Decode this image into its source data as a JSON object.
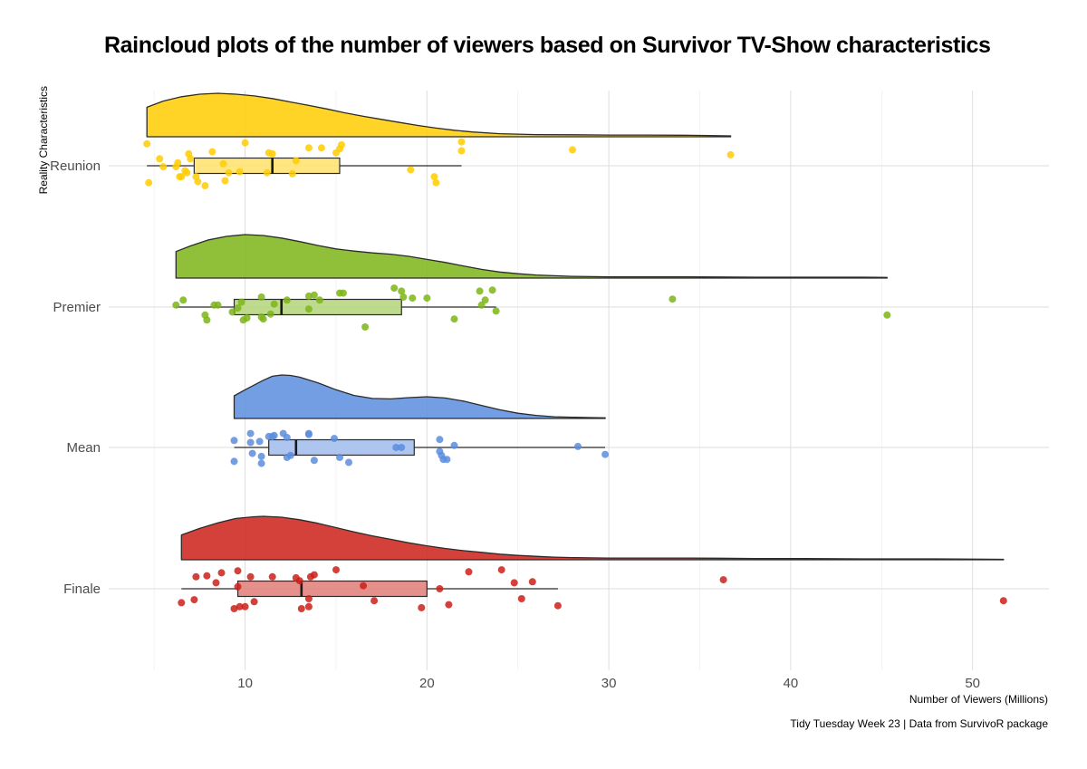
{
  "chart_data": {
    "type": "raincloud",
    "title": "Raincloud plots of the number of viewers based on Survivor TV-Show characteristics",
    "xlabel": "Number of Viewers (Millions)",
    "ylabel": "Reality Characteristics",
    "caption": "Tidy Tuesday Week 23 | Data from SurvivoR package",
    "xlim": [
      2.5,
      54.2
    ],
    "x_ticks": [
      10,
      20,
      30,
      40,
      50
    ],
    "x_tick_labels": [
      "10",
      "20",
      "30",
      "40",
      "50"
    ],
    "grid": true,
    "legend": "none",
    "categories": [
      "Reunion",
      "Premier",
      "Mean",
      "Finale"
    ],
    "series": [
      {
        "name": "Reunion",
        "color": "#FFCC00",
        "box": {
          "min": 4.6,
          "q1": 7.2,
          "median": 11.5,
          "q3": 15.2,
          "max": 21.9
        },
        "density": [
          [
            4.6,
            0.68
          ],
          [
            5.5,
            0.82
          ],
          [
            6.5,
            0.92
          ],
          [
            7.5,
            0.98
          ],
          [
            8.5,
            1.0
          ],
          [
            9.5,
            0.98
          ],
          [
            10.5,
            0.94
          ],
          [
            11.5,
            0.88
          ],
          [
            12.5,
            0.8
          ],
          [
            13.5,
            0.72
          ],
          [
            14.5,
            0.64
          ],
          [
            15.5,
            0.55
          ],
          [
            16.5,
            0.47
          ],
          [
            17.5,
            0.4
          ],
          [
            18.5,
            0.33
          ],
          [
            19.5,
            0.26
          ],
          [
            20.5,
            0.2
          ],
          [
            21.5,
            0.15
          ],
          [
            22.5,
            0.11
          ],
          [
            24,
            0.07
          ],
          [
            26,
            0.05
          ],
          [
            28,
            0.045
          ],
          [
            30,
            0.04
          ],
          [
            32,
            0.04
          ],
          [
            34,
            0.035
          ],
          [
            35.5,
            0.03
          ],
          [
            36.7,
            0.02
          ]
        ],
        "points": [
          [
            4.6,
            1.1
          ],
          [
            4.7,
            -0.85
          ],
          [
            5.3,
            0.35
          ],
          [
            5.5,
            -0.05
          ],
          [
            6.2,
            -0.05
          ],
          [
            6.3,
            0.15
          ],
          [
            6.4,
            -0.55
          ],
          [
            6.5,
            -0.55
          ],
          [
            6.7,
            -0.25
          ],
          [
            6.8,
            -0.35
          ],
          [
            6.9,
            0.6
          ],
          [
            7.0,
            0.35
          ],
          [
            7.3,
            -0.55
          ],
          [
            7.8,
            -1.0
          ],
          [
            7.4,
            -0.8
          ],
          [
            8.2,
            0.7
          ],
          [
            8.8,
            0.1
          ],
          [
            8.9,
            -0.75
          ],
          [
            9.1,
            -0.35
          ],
          [
            9.7,
            -0.3
          ],
          [
            10.0,
            1.15
          ],
          [
            11.2,
            -0.35
          ],
          [
            11.3,
            0.65
          ],
          [
            11.5,
            0.6
          ],
          [
            12.6,
            -0.4
          ],
          [
            12.8,
            0.25
          ],
          [
            13.5,
            0.9
          ],
          [
            14.2,
            0.9
          ],
          [
            15.0,
            0.65
          ],
          [
            15.2,
            0.85
          ],
          [
            15.3,
            1.05
          ],
          [
            19.1,
            -0.2
          ],
          [
            20.4,
            -0.55
          ],
          [
            20.5,
            -0.85
          ],
          [
            21.9,
            1.2
          ],
          [
            21.9,
            0.75
          ],
          [
            28.0,
            0.8
          ],
          [
            36.7,
            0.55
          ]
        ]
      },
      {
        "name": "Premier",
        "color": "#7CB518",
        "box": {
          "min": 6.2,
          "q1": 9.4,
          "median": 12.0,
          "q3": 18.6,
          "max": 23.8
        },
        "density": [
          [
            6.2,
            0.61
          ],
          [
            7,
            0.74
          ],
          [
            8,
            0.88
          ],
          [
            9,
            0.96
          ],
          [
            10,
            1.0
          ],
          [
            11,
            0.98
          ],
          [
            12,
            0.92
          ],
          [
            13,
            0.84
          ],
          [
            14,
            0.75
          ],
          [
            15,
            0.67
          ],
          [
            16,
            0.62
          ],
          [
            17,
            0.58
          ],
          [
            18,
            0.55
          ],
          [
            19,
            0.5
          ],
          [
            20,
            0.43
          ],
          [
            21,
            0.36
          ],
          [
            22,
            0.28
          ],
          [
            23,
            0.2
          ],
          [
            24,
            0.14
          ],
          [
            25,
            0.1
          ],
          [
            26,
            0.07
          ],
          [
            28,
            0.04
          ],
          [
            30,
            0.03
          ],
          [
            32,
            0.03
          ],
          [
            34,
            0.03
          ],
          [
            36,
            0.025
          ],
          [
            38,
            0.02
          ],
          [
            40,
            0.02
          ],
          [
            42,
            0.02
          ],
          [
            44,
            0.02
          ],
          [
            45.3,
            0.015
          ]
        ],
        "points": [
          [
            6.2,
            0.1
          ],
          [
            6.6,
            0.35
          ],
          [
            7.8,
            -0.4
          ],
          [
            7.9,
            -0.65
          ],
          [
            8.3,
            0.1
          ],
          [
            8.5,
            0.1
          ],
          [
            9.3,
            -0.25
          ],
          [
            9.6,
            -0.05
          ],
          [
            9.8,
            0.25
          ],
          [
            9.9,
            -0.65
          ],
          [
            10.1,
            -0.55
          ],
          [
            10.9,
            0.5
          ],
          [
            10.9,
            -0.5
          ],
          [
            11.0,
            -0.6
          ],
          [
            11.4,
            -0.35
          ],
          [
            11.6,
            0.15
          ],
          [
            12.3,
            0.35
          ],
          [
            13.5,
            0.55
          ],
          [
            13.5,
            -0.1
          ],
          [
            13.8,
            0.6
          ],
          [
            14.1,
            0.35
          ],
          [
            15.2,
            0.7
          ],
          [
            15.4,
            0.7
          ],
          [
            16.6,
            -1.0
          ],
          [
            18.2,
            0.95
          ],
          [
            18.6,
            0.8
          ],
          [
            18.7,
            0.5
          ],
          [
            19.2,
            0.45
          ],
          [
            20.0,
            0.45
          ],
          [
            21.5,
            -0.6
          ],
          [
            22.9,
            0.8
          ],
          [
            23.0,
            0.1
          ],
          [
            23.2,
            0.35
          ],
          [
            23.6,
            0.85
          ],
          [
            23.8,
            -0.2
          ],
          [
            33.5,
            0.4
          ],
          [
            45.3,
            -0.4
          ]
        ]
      },
      {
        "name": "Mean",
        "color": "#5B8DDE",
        "box": {
          "min": 9.4,
          "q1": 11.3,
          "median": 12.8,
          "q3": 19.3,
          "max": 29.8
        },
        "density": [
          [
            9.4,
            0.52
          ],
          [
            10,
            0.66
          ],
          [
            11,
            0.88
          ],
          [
            11.5,
            0.97
          ],
          [
            12,
            1.0
          ],
          [
            12.5,
            0.99
          ],
          [
            13,
            0.95
          ],
          [
            14,
            0.82
          ],
          [
            15,
            0.66
          ],
          [
            16,
            0.53
          ],
          [
            17,
            0.46
          ],
          [
            18,
            0.45
          ],
          [
            19,
            0.48
          ],
          [
            20,
            0.5
          ],
          [
            21,
            0.47
          ],
          [
            22,
            0.4
          ],
          [
            23,
            0.3
          ],
          [
            24,
            0.2
          ],
          [
            25,
            0.12
          ],
          [
            26,
            0.07
          ],
          [
            27,
            0.04
          ],
          [
            28,
            0.03
          ],
          [
            29,
            0.02
          ],
          [
            29.8,
            0.015
          ]
        ],
        "points": [
          [
            9.4,
            0.35
          ],
          [
            9.4,
            -0.7
          ],
          [
            10.3,
            0.7
          ],
          [
            10.3,
            0.25
          ],
          [
            10.4,
            -0.3
          ],
          [
            10.8,
            0.3
          ],
          [
            10.9,
            -0.45
          ],
          [
            10.9,
            -0.8
          ],
          [
            11.3,
            0.55
          ],
          [
            11.5,
            0.55
          ],
          [
            11.6,
            0.6
          ],
          [
            12.1,
            0.7
          ],
          [
            12.3,
            0.5
          ],
          [
            12.3,
            -0.5
          ],
          [
            12.5,
            -0.4
          ],
          [
            13.5,
            0.65
          ],
          [
            13.5,
            0.7
          ],
          [
            13.8,
            -0.65
          ],
          [
            14.9,
            0.45
          ],
          [
            15.2,
            -0.5
          ],
          [
            15.7,
            -0.75
          ],
          [
            18.3,
            0.0
          ],
          [
            18.6,
            0.0
          ],
          [
            20.7,
            0.4
          ],
          [
            20.7,
            -0.2
          ],
          [
            20.8,
            -0.4
          ],
          [
            20.9,
            -0.6
          ],
          [
            21.1,
            -0.6
          ],
          [
            21.5,
            0.1
          ],
          [
            28.3,
            0.05
          ],
          [
            29.8,
            -0.35
          ]
        ]
      },
      {
        "name": "Finale",
        "color": "#CC1F18",
        "box": {
          "min": 6.5,
          "q1": 9.6,
          "median": 13.1,
          "q3": 20.0,
          "max": 27.2
        },
        "density": [
          [
            6.5,
            0.57
          ],
          [
            7.5,
            0.72
          ],
          [
            8.5,
            0.85
          ],
          [
            9.5,
            0.95
          ],
          [
            10.5,
            0.99
          ],
          [
            11,
            1.0
          ],
          [
            12,
            0.98
          ],
          [
            13,
            0.92
          ],
          [
            14,
            0.84
          ],
          [
            15,
            0.74
          ],
          [
            16,
            0.64
          ],
          [
            17,
            0.55
          ],
          [
            18,
            0.47
          ],
          [
            19,
            0.39
          ],
          [
            20,
            0.32
          ],
          [
            21,
            0.26
          ],
          [
            22,
            0.21
          ],
          [
            23,
            0.17
          ],
          [
            24,
            0.13
          ],
          [
            25,
            0.1
          ],
          [
            26,
            0.08
          ],
          [
            27,
            0.06
          ],
          [
            28,
            0.05
          ],
          [
            30,
            0.04
          ],
          [
            32,
            0.04
          ],
          [
            34,
            0.04
          ],
          [
            36,
            0.035
          ],
          [
            38,
            0.03
          ],
          [
            40,
            0.03
          ],
          [
            42,
            0.025
          ],
          [
            44,
            0.02
          ],
          [
            46,
            0.02
          ],
          [
            48,
            0.02
          ],
          [
            50,
            0.015
          ],
          [
            51.7,
            0.01
          ]
        ],
        "points": [
          [
            6.5,
            -0.7
          ],
          [
            7.2,
            -0.55
          ],
          [
            7.3,
            0.6
          ],
          [
            7.9,
            0.65
          ],
          [
            8.4,
            0.3
          ],
          [
            8.7,
            0.8
          ],
          [
            9.4,
            -1.0
          ],
          [
            9.6,
            0.9
          ],
          [
            9.6,
            0.1
          ],
          [
            9.7,
            -0.9
          ],
          [
            10.0,
            -0.9
          ],
          [
            10.3,
            0.6
          ],
          [
            10.5,
            -0.65
          ],
          [
            11.5,
            0.6
          ],
          [
            12.8,
            0.55
          ],
          [
            13.0,
            0.4
          ],
          [
            13.1,
            -1.0
          ],
          [
            13.5,
            -0.5
          ],
          [
            13.5,
            -0.9
          ],
          [
            13.6,
            0.6
          ],
          [
            13.8,
            0.7
          ],
          [
            15.0,
            0.95
          ],
          [
            16.5,
            0.15
          ],
          [
            17.1,
            -0.6
          ],
          [
            19.7,
            -0.95
          ],
          [
            20.7,
            0.0
          ],
          [
            21.2,
            -0.8
          ],
          [
            22.3,
            0.85
          ],
          [
            24.1,
            0.95
          ],
          [
            24.8,
            0.3
          ],
          [
            25.2,
            -0.5
          ],
          [
            25.8,
            0.35
          ],
          [
            27.2,
            -0.85
          ],
          [
            36.3,
            0.45
          ],
          [
            51.7,
            -0.6
          ]
        ]
      }
    ]
  }
}
